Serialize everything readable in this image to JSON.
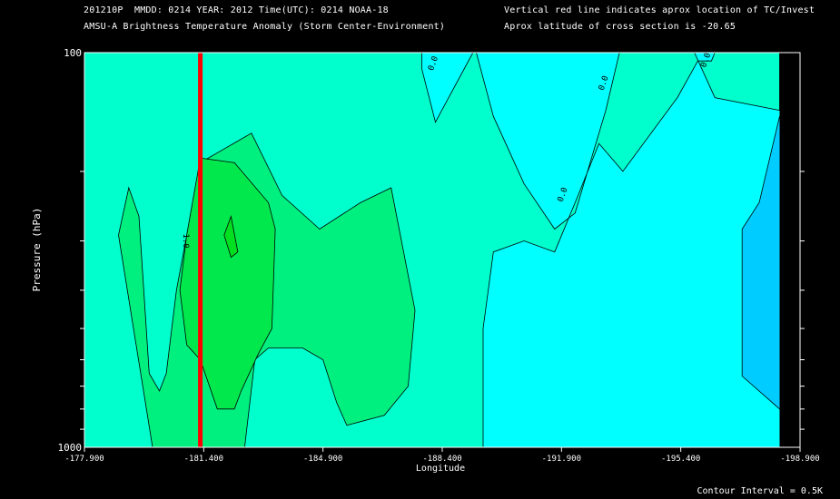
{
  "header": {
    "line1_left": "201210P  MMDD: 0214 YEAR: 2012 Time(UTC): 0214 NOAA-18",
    "line2_left": "AMSU-A Brightness Temperature Anomaly (Storm Center-Environment)",
    "line1_right": "Vertical red line indicates aprox location of TC/Invest",
    "line2_right": "Aprox latitude of cross section is -20.65"
  },
  "footer": {
    "contour_interval": "Contour Interval = 0.5K"
  },
  "colors": {
    "background": "#000000",
    "fill_neg_1": "#00ccff",
    "fill_neg_05": "#00ffff",
    "fill_0": "#00ffcc",
    "fill_05": "#00f080",
    "fill_1": "#00e84c",
    "fill_15": "#00e020",
    "tc_line": "#ff0000"
  },
  "chart_data": {
    "type": "contour",
    "xlabel": "Longitude",
    "ylabel": "Pressure (hPa)",
    "xlim": [
      -177.9,
      -198.9
    ],
    "ylim": [
      1000,
      100
    ],
    "y_scale": "log",
    "xticks": [
      "-177.900",
      "-181.400",
      "-184.900",
      "-188.400",
      "-191.900",
      "-195.400",
      "-198.900"
    ],
    "yticks": [
      "100",
      "1000"
    ],
    "tc_longitude": -181.3,
    "contour_labels": [
      "0.0",
      "0.0",
      "0.0",
      "0.0",
      "1.0"
    ],
    "levels": [
      -1.0,
      -0.5,
      0.0,
      0.5,
      1.0,
      1.5
    ],
    "regions": [
      {
        "level": -0.5,
        "polygon": [
          [
            -187.8,
            100
          ],
          [
            -189.4,
            100
          ],
          [
            -189.9,
            145
          ],
          [
            -190.8,
            215
          ],
          [
            -191.7,
            280
          ],
          [
            -192.3,
            255
          ],
          [
            -193.2,
            140
          ],
          [
            -193.6,
            100
          ],
          [
            -195.8,
            100
          ],
          [
            -196.4,
            130
          ],
          [
            -198.3,
            140
          ],
          [
            -198.3,
            100
          ],
          [
            -198.9,
            100
          ],
          [
            -198.9,
            1000
          ],
          [
            -189.6,
            1000
          ],
          [
            -189.6,
            500
          ],
          [
            -189.9,
            320
          ],
          [
            -190.8,
            300
          ],
          [
            -191.7,
            320
          ],
          [
            -192.3,
            240
          ],
          [
            -193.0,
            170
          ],
          [
            -193.7,
            200
          ],
          [
            -195.3,
            130
          ],
          [
            -195.9,
            105
          ],
          [
            -196.3,
            105
          ],
          [
            -196.4,
            100
          ],
          [
            -189.3,
            100
          ],
          [
            -188.2,
            150
          ],
          [
            -187.8,
            110
          ]
        ]
      },
      {
        "level": -1.0,
        "polygon": [
          [
            -198.9,
            300
          ],
          [
            -198.3,
            145
          ],
          [
            -197.7,
            240
          ],
          [
            -197.2,
            280
          ],
          [
            -197.2,
            660
          ],
          [
            -198.3,
            800
          ],
          [
            -198.9,
            800
          ]
        ]
      },
      {
        "level": 0.5,
        "polygon": [
          [
            -179.9,
            1000
          ],
          [
            -178.9,
            290
          ],
          [
            -179.2,
            220
          ],
          [
            -179.5,
            260
          ],
          [
            -179.8,
            650
          ],
          [
            -180.1,
            720
          ],
          [
            -180.3,
            650
          ],
          [
            -180.6,
            400
          ],
          [
            -181.3,
            190
          ],
          [
            -182.8,
            160
          ],
          [
            -183.7,
            230
          ],
          [
            -184.8,
            280
          ],
          [
            -186.0,
            240
          ],
          [
            -186.9,
            220
          ],
          [
            -187.6,
            450
          ],
          [
            -187.4,
            700
          ],
          [
            -186.7,
            830
          ],
          [
            -185.6,
            880
          ],
          [
            -185.3,
            770
          ],
          [
            -184.9,
            600
          ],
          [
            -184.3,
            560
          ],
          [
            -183.3,
            560
          ],
          [
            -182.9,
            600
          ],
          [
            -182.6,
            1000
          ]
        ]
      },
      {
        "level": 1.0,
        "polygon": [
          [
            -180.9,
            290
          ],
          [
            -181.3,
            185
          ],
          [
            -182.3,
            190
          ],
          [
            -183.3,
            240
          ],
          [
            -183.5,
            280
          ],
          [
            -183.4,
            500
          ],
          [
            -183.0,
            580
          ],
          [
            -182.5,
            720
          ],
          [
            -182.3,
            800
          ],
          [
            -181.8,
            800
          ],
          [
            -181.3,
            600
          ],
          [
            -180.9,
            550
          ],
          [
            -180.7,
            400
          ]
        ]
      },
      {
        "level": 1.5,
        "polygon": [
          [
            -182.0,
            290
          ],
          [
            -182.2,
            260
          ],
          [
            -182.4,
            320
          ],
          [
            -182.2,
            330
          ]
        ]
      }
    ]
  }
}
